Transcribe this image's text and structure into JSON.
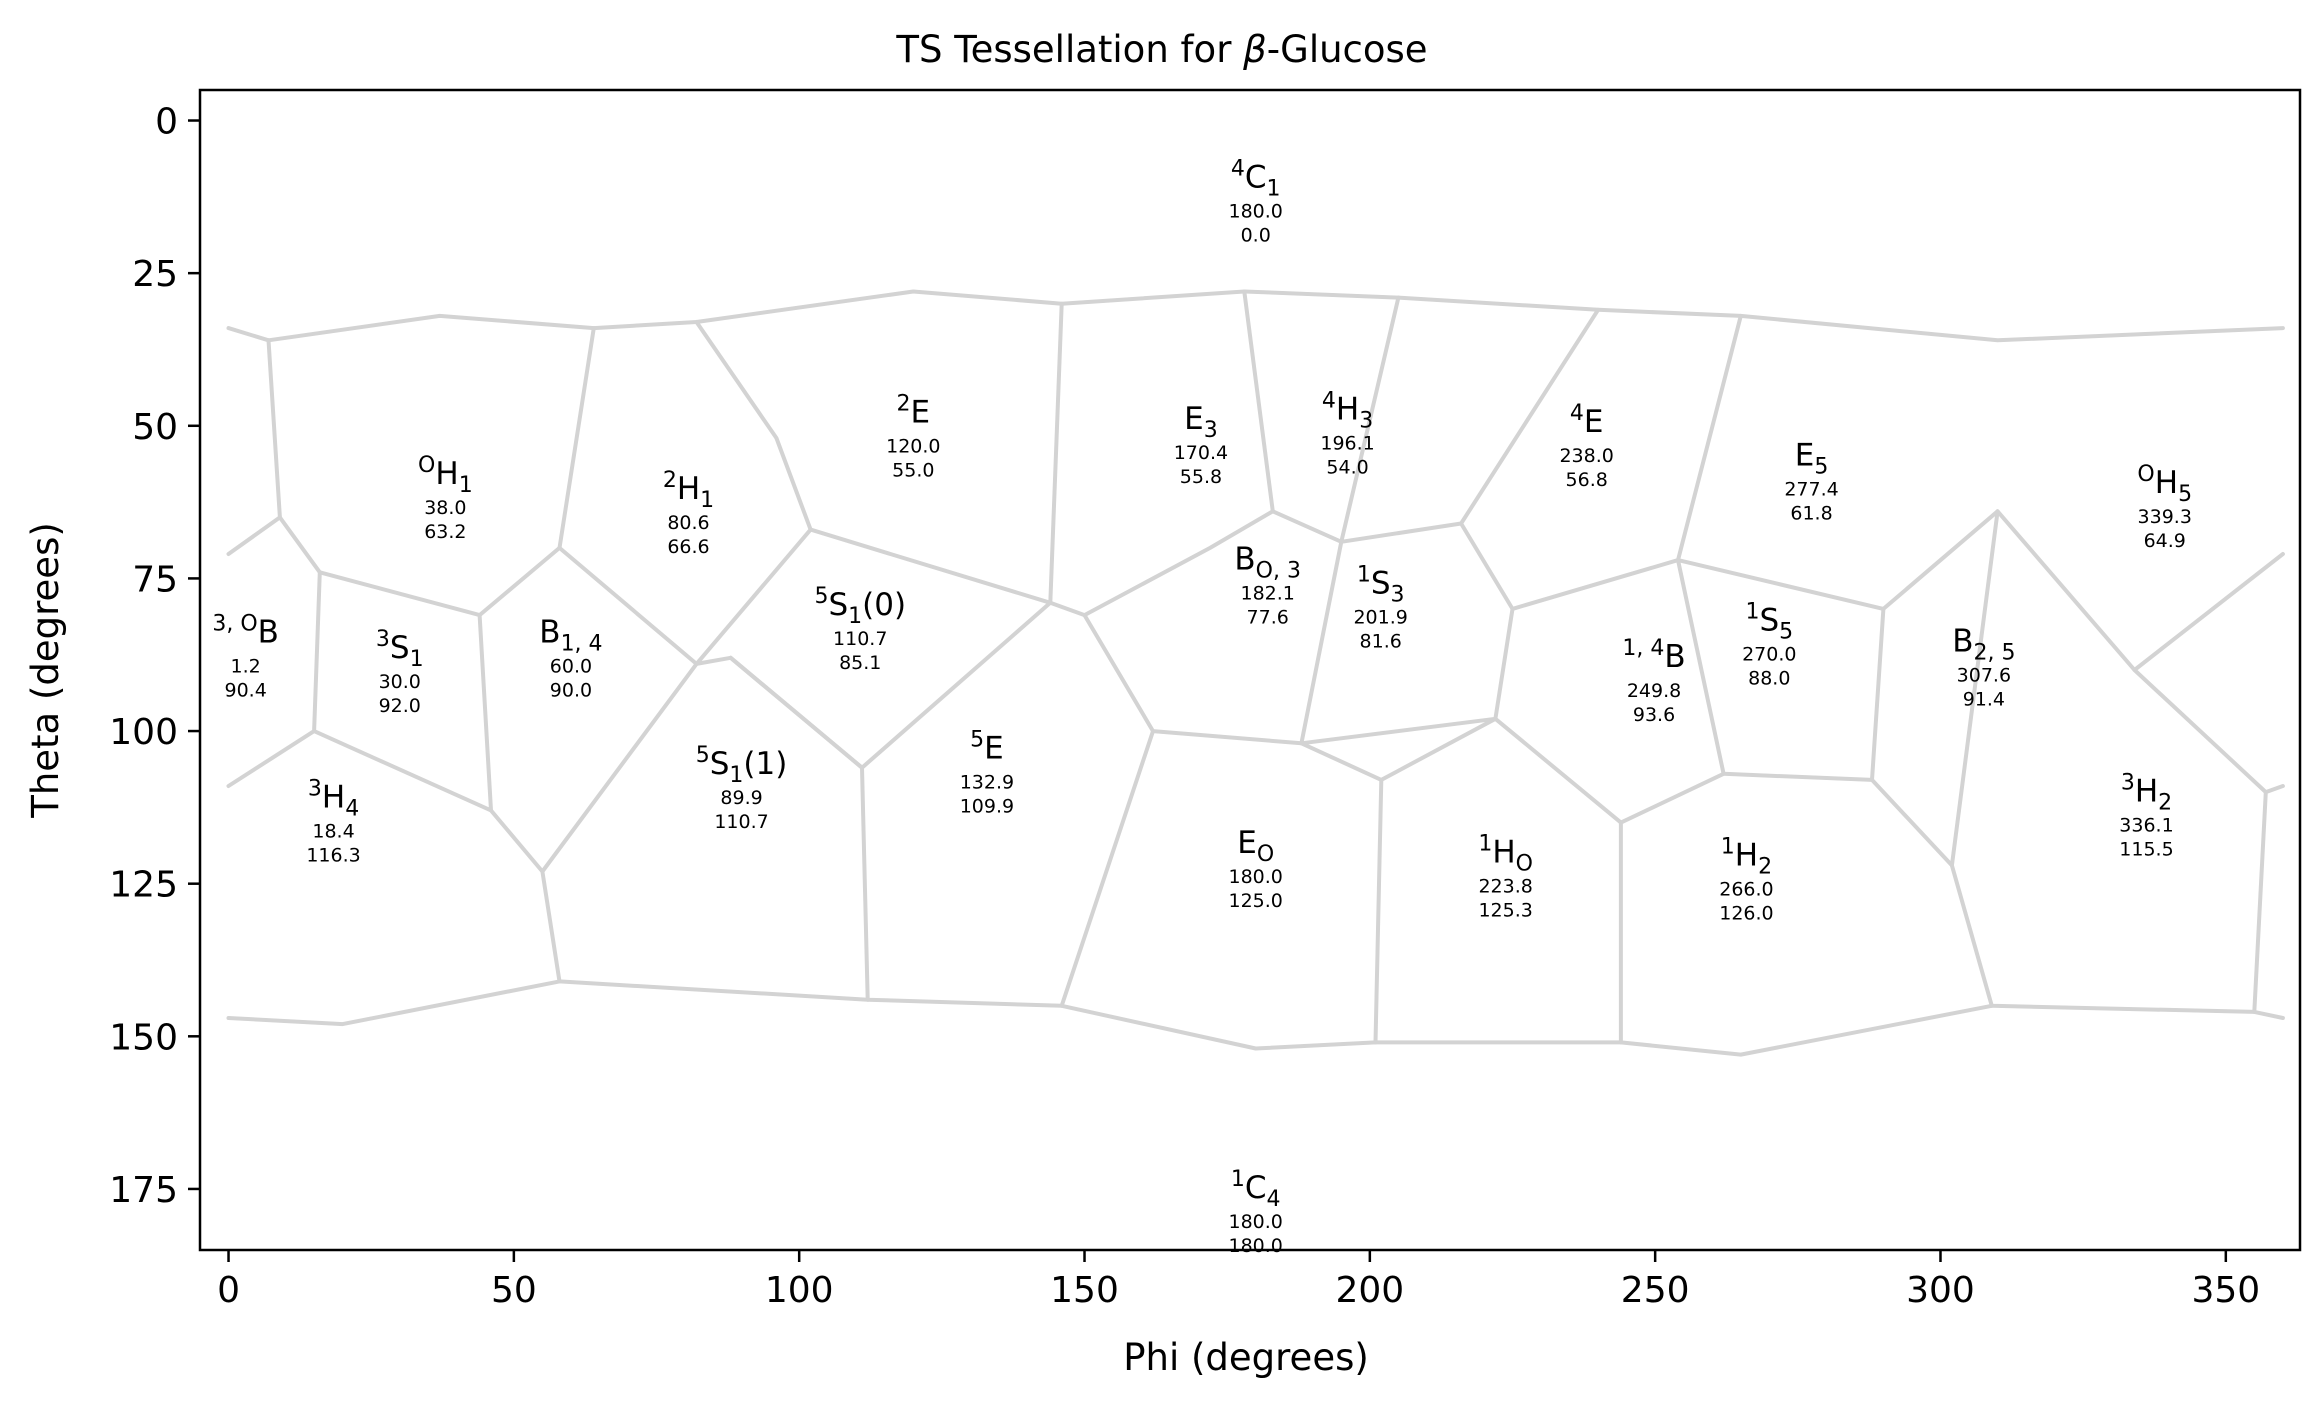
{
  "chart_data": {
    "type": "scatter",
    "title": "TS Tessellation for β-Glucose",
    "xlabel": "Phi (degrees)",
    "ylabel": "Theta (degrees)",
    "xlim": [
      -5,
      363
    ],
    "ylim": [
      185,
      -5
    ],
    "y_inverted": true,
    "grid": false,
    "xticks": [
      0,
      50,
      100,
      150,
      200,
      250,
      300,
      350
    ],
    "yticks": [
      0,
      25,
      50,
      75,
      100,
      125,
      150,
      175
    ],
    "edge_color": "#d3d3d3",
    "points": [
      {
        "base": "C",
        "sup": "4",
        "sub": "1",
        "phi_label": "180.0",
        "theta_label": "0.0",
        "phi": 180.0,
        "theta": 0.0,
        "label_theta": 11.0,
        "label_phi": 180.0
      },
      {
        "base": "H",
        "sup": "O",
        "sub": "1",
        "phi_label": "38.0",
        "theta_label": "63.2",
        "phi": 38.0,
        "theta": 63.2,
        "label_theta": 59.5,
        "label_phi": 38.0
      },
      {
        "base": "H",
        "sup": "2",
        "sub": "1",
        "phi_label": "80.6",
        "theta_label": "66.6",
        "phi": 80.6,
        "theta": 66.6,
        "label_theta": 62.0,
        "label_phi": 80.6
      },
      {
        "base": "E",
        "sup": "2",
        "sub": "",
        "phi_label": "120.0",
        "theta_label": "55.0",
        "phi": 120.0,
        "theta": 55.0,
        "label_theta": 49.5,
        "label_phi": 120.0
      },
      {
        "base": "E",
        "sup": "",
        "sub": "3",
        "phi_label": "170.4",
        "theta_label": "55.8",
        "phi": 170.4,
        "theta": 55.8,
        "label_theta": 50.5,
        "label_phi": 170.4
      },
      {
        "base": "H",
        "sup": "4",
        "sub": "3",
        "phi_label": "196.1",
        "theta_label": "54.0",
        "phi": 196.1,
        "theta": 54.0,
        "label_theta": 49.0,
        "label_phi": 196.1
      },
      {
        "base": "E",
        "sup": "4",
        "sub": "",
        "phi_label": "238.0",
        "theta_label": "56.8",
        "phi": 238.0,
        "theta": 56.8,
        "label_theta": 51.0,
        "label_phi": 238.0
      },
      {
        "base": "E",
        "sup": "",
        "sub": "5",
        "phi_label": "277.4",
        "theta_label": "61.8",
        "phi": 277.4,
        "theta": 61.8,
        "label_theta": 56.5,
        "label_phi": 277.4
      },
      {
        "base": "H",
        "sup": "O",
        "sub": "5",
        "phi_label": "339.3",
        "theta_label": "64.9",
        "phi": 339.3,
        "theta": 64.9,
        "label_theta": 61.0,
        "label_phi": 339.3
      },
      {
        "base": "B",
        "sup": "3, O",
        "sub": "",
        "phi_label": "1.2",
        "theta_label": "90.4",
        "phi": 1.2,
        "theta": 90.4,
        "label_theta": 85.5,
        "label_phi": 3.0
      },
      {
        "base": "S",
        "sup": "3",
        "sub": "1",
        "phi_label": "30.0",
        "theta_label": "92.0",
        "phi": 30.0,
        "theta": 92.0,
        "label_theta": 88.0,
        "label_phi": 30.0
      },
      {
        "base": "B",
        "sup": "",
        "sub": "1, 4",
        "phi_label": "60.0",
        "theta_label": "90.0",
        "phi": 60.0,
        "theta": 90.0,
        "label_theta": 85.5,
        "label_phi": 60.0
      },
      {
        "base": "S",
        "sup": "5",
        "sub": "1",
        "suffix": "(0)",
        "phi_label": "110.7",
        "theta_label": "85.1",
        "phi": 110.7,
        "theta": 85.1,
        "label_theta": 81.0,
        "label_phi": 110.7
      },
      {
        "base": "B",
        "sup": "",
        "sub": "O, 3",
        "phi_label": "182.1",
        "theta_label": "77.6",
        "phi": 182.1,
        "theta": 77.6,
        "label_theta": 73.5,
        "label_phi": 182.1
      },
      {
        "base": "S",
        "sup": "1",
        "sub": "3",
        "phi_label": "201.9",
        "theta_label": "81.6",
        "phi": 201.9,
        "theta": 81.6,
        "label_theta": 77.5,
        "label_phi": 201.9
      },
      {
        "base": "B",
        "sup": "1, 4",
        "sub": "",
        "phi_label": "249.8",
        "theta_label": "93.6",
        "phi": 249.8,
        "theta": 93.6,
        "label_theta": 89.5,
        "label_phi": 249.8
      },
      {
        "base": "S",
        "sup": "1",
        "sub": "5",
        "phi_label": "270.0",
        "theta_label": "88.0",
        "phi": 270.0,
        "theta": 88.0,
        "label_theta": 83.5,
        "label_phi": 270.0
      },
      {
        "base": "B",
        "sup": "",
        "sub": "2, 5",
        "phi_label": "307.6",
        "theta_label": "91.4",
        "phi": 307.6,
        "theta": 91.4,
        "label_theta": 87.0,
        "label_phi": 307.6
      },
      {
        "base": "H",
        "sup": "3",
        "sub": "4",
        "phi_label": "18.4",
        "theta_label": "116.3",
        "phi": 18.4,
        "theta": 116.3,
        "label_theta": 112.5,
        "label_phi": 18.4
      },
      {
        "base": "S",
        "sup": "5",
        "sub": "1",
        "suffix": "(1)",
        "phi_label": "89.9",
        "theta_label": "110.7",
        "phi": 89.9,
        "theta": 110.7,
        "label_theta": 107.0,
        "label_phi": 89.9
      },
      {
        "base": "E",
        "sup": "5",
        "sub": "",
        "phi_label": "132.9",
        "theta_label": "109.9",
        "phi": 132.9,
        "theta": 109.9,
        "label_theta": 104.5,
        "label_phi": 132.9
      },
      {
        "base": "E",
        "sup": "",
        "sub": "O",
        "phi_label": "180.0",
        "theta_label": "125.0",
        "phi": 180.0,
        "theta": 125.0,
        "label_theta": 120.0,
        "label_phi": 180.0
      },
      {
        "base": "H",
        "sup": "1",
        "sub": "O",
        "phi_label": "223.8",
        "theta_label": "125.3",
        "phi": 223.8,
        "theta": 125.3,
        "label_theta": 121.5,
        "label_phi": 223.8
      },
      {
        "base": "H",
        "sup": "1",
        "sub": "2",
        "phi_label": "266.0",
        "theta_label": "126.0",
        "phi": 266.0,
        "theta": 126.0,
        "label_theta": 122.0,
        "label_phi": 266.0
      },
      {
        "base": "H",
        "sup": "3",
        "sub": "2",
        "phi_label": "336.1",
        "theta_label": "115.5",
        "phi": 336.1,
        "theta": 115.5,
        "label_theta": 111.5,
        "label_phi": 336.1
      },
      {
        "base": "C",
        "sup": "1",
        "sub": "4",
        "phi_label": "180.0",
        "theta_label": "180.0",
        "phi": 180.0,
        "theta": 180.0,
        "label_theta": 176.5,
        "label_phi": 180.0
      }
    ],
    "cell_boundaries": [
      [
        [
          0,
          34
        ],
        [
          7,
          36
        ],
        [
          37,
          32
        ],
        [
          64,
          34
        ],
        [
          82,
          33
        ],
        [
          120,
          28
        ],
        [
          146,
          30
        ],
        [
          178,
          28
        ],
        [
          205,
          29
        ],
        [
          240,
          31
        ],
        [
          265,
          32
        ],
        [
          310,
          36
        ],
        [
          360,
          34
        ]
      ],
      [
        [
          7,
          36
        ],
        [
          9,
          65
        ],
        [
          0,
          71
        ]
      ],
      [
        [
          9,
          65
        ],
        [
          16,
          74
        ],
        [
          44,
          81
        ],
        [
          58,
          70
        ],
        [
          64,
          34
        ]
      ],
      [
        [
          16,
          74
        ],
        [
          15,
          100
        ],
        [
          0,
          109
        ]
      ],
      [
        [
          15,
          100
        ],
        [
          46,
          113
        ],
        [
          44,
          81
        ]
      ],
      [
        [
          46,
          113
        ],
        [
          55,
          123
        ],
        [
          82,
          89
        ],
        [
          58,
          70
        ]
      ],
      [
        [
          82,
          33
        ],
        [
          96,
          52
        ],
        [
          102,
          67
        ],
        [
          82,
          89
        ],
        [
          88,
          88
        ],
        [
          111,
          106
        ],
        [
          144,
          79
        ],
        [
          146,
          30
        ]
      ],
      [
        [
          102,
          67
        ],
        [
          144,
          79
        ],
        [
          150,
          81
        ],
        [
          172,
          70
        ],
        [
          183,
          64
        ],
        [
          195,
          69
        ],
        [
          216,
          66
        ],
        [
          225,
          80
        ],
        [
          254,
          72
        ],
        [
          272,
          76
        ],
        [
          290,
          80
        ],
        [
          310,
          64
        ],
        [
          334,
          90
        ],
        [
          360,
          71
        ]
      ],
      [
        [
          178,
          28
        ],
        [
          183,
          64
        ]
      ],
      [
        [
          205,
          29
        ],
        [
          195,
          69
        ],
        [
          188,
          102
        ],
        [
          162,
          100
        ],
        [
          150,
          81
        ]
      ],
      [
        [
          216,
          66
        ],
        [
          240,
          31
        ]
      ],
      [
        [
          225,
          80
        ],
        [
          222,
          98
        ],
        [
          188,
          102
        ]
      ],
      [
        [
          254,
          72
        ],
        [
          265,
          32
        ]
      ],
      [
        [
          254,
          72
        ],
        [
          262,
          107
        ],
        [
          288,
          108
        ],
        [
          290,
          80
        ]
      ],
      [
        [
          222,
          98
        ],
        [
          244,
          115
        ],
        [
          262,
          107
        ]
      ],
      [
        [
          111,
          106
        ],
        [
          112,
          144
        ],
        [
          146,
          145
        ],
        [
          162,
          100
        ]
      ],
      [
        [
          55,
          123
        ],
        [
          58,
          141
        ],
        [
          112,
          144
        ]
      ],
      [
        [
          88,
          88
        ],
        [
          111,
          106
        ]
      ],
      [
        [
          288,
          108
        ],
        [
          302,
          122
        ],
        [
          310,
          64
        ]
      ],
      [
        [
          302,
          122
        ],
        [
          309,
          145
        ],
        [
          355,
          146
        ],
        [
          357,
          110
        ],
        [
          360,
          109
        ]
      ],
      [
        [
          334,
          90
        ],
        [
          357,
          110
        ]
      ],
      [
        [
          0,
          147
        ],
        [
          20,
          148
        ],
        [
          58,
          141
        ]
      ],
      [
        [
          146,
          145
        ],
        [
          180,
          152
        ],
        [
          201,
          151
        ],
        [
          244,
          151
        ],
        [
          265,
          153
        ],
        [
          309,
          145
        ]
      ],
      [
        [
          201,
          151
        ],
        [
          202,
          108
        ],
        [
          188,
          102
        ]
      ],
      [
        [
          202,
          108
        ],
        [
          222,
          98
        ]
      ],
      [
        [
          244,
          151
        ],
        [
          244,
          115
        ]
      ],
      [
        [
          355,
          146
        ],
        [
          360,
          147
        ]
      ]
    ]
  }
}
